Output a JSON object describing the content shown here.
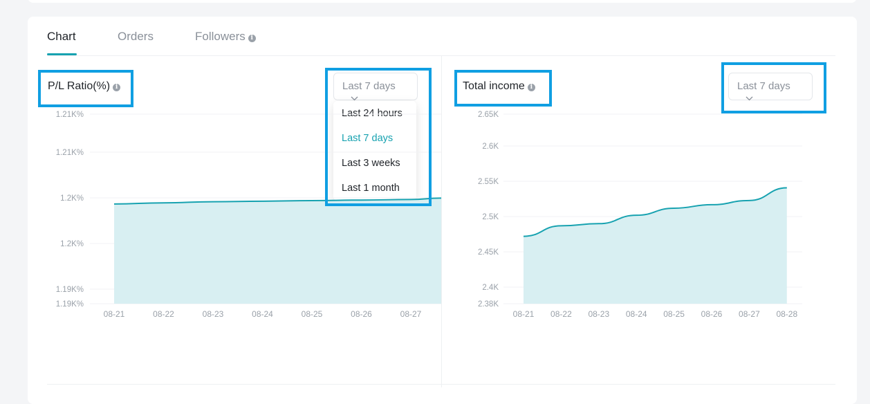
{
  "tabs": [
    {
      "label": "Chart",
      "active": true
    },
    {
      "label": "Orders",
      "active": false
    },
    {
      "label": "Followers",
      "active": false
    }
  ],
  "info_icon": "info-icon",
  "left_panel": {
    "title": "P/L Ratio(%)",
    "select_value": "Last 7 days",
    "dropdown_open": true,
    "options": [
      "Last 24 hours",
      "Last 7 days",
      "Last 3 weeks",
      "Last 1 month"
    ],
    "selected_option": "Last 7 days"
  },
  "right_panel": {
    "title": "Total income",
    "select_value": "Last 7 days",
    "dropdown_open": false
  },
  "colors": {
    "accent": "#17a2b0",
    "area": "#d6eef1",
    "highlight": "#109fe2"
  },
  "chart_data": [
    {
      "type": "area",
      "title": "P/L Ratio(%)",
      "x": [
        "08-21",
        "08-22",
        "08-23",
        "08-24",
        "08-25",
        "08-26",
        "08-27"
      ],
      "y_ticks": [
        "1.21K%",
        "1.21K%",
        "1.2K%",
        "1.2K%",
        "1.19K%",
        "1.19K%"
      ],
      "values": [
        1201.5,
        1201.6,
        1201.7,
        1201.75,
        1201.8,
        1201.85,
        1201.9
      ],
      "ylim": [
        1190,
        1210
      ],
      "grid": true
    },
    {
      "type": "area",
      "title": "Total income",
      "x": [
        "08-21",
        "08-22",
        "08-23",
        "08-24",
        "08-25",
        "08-26",
        "08-27",
        "08-28"
      ],
      "y_ticks": [
        "2.65K",
        "2.6K",
        "2.55K",
        "2.5K",
        "2.45K",
        "2.4K",
        "2.38K"
      ],
      "values": [
        2476,
        2491,
        2494,
        2506,
        2516,
        2521,
        2527,
        2545
      ],
      "ylim": [
        2380,
        2650
      ],
      "grid": true
    }
  ]
}
